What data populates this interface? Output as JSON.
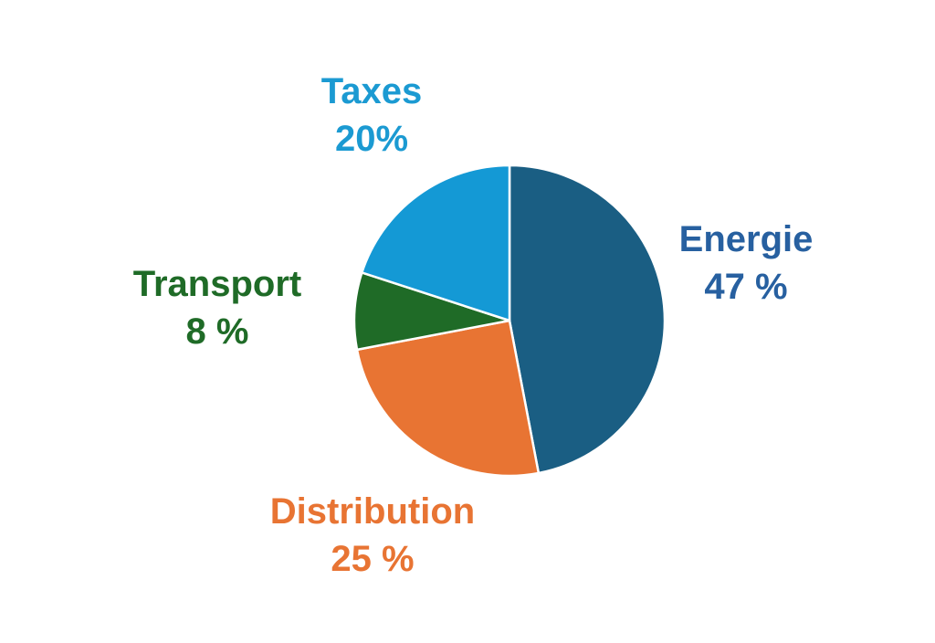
{
  "chart_data": {
    "type": "pie",
    "title": "",
    "start_angle_deg": 0,
    "direction": "clockwise",
    "slices": [
      {
        "label": "Energie",
        "value": 47,
        "display": "47 %",
        "color": "#1a5e83"
      },
      {
        "label": "Distribution",
        "value": 25,
        "display": "25 %",
        "color": "#e87433"
      },
      {
        "label": "Transport",
        "value": 8,
        "display": "8 %",
        "color": "#1f6b27"
      },
      {
        "label": "Taxes",
        "value": 20,
        "display": "20%",
        "color": "#1499d5"
      }
    ],
    "label_colors": {
      "Energie": "#2760a0",
      "Distribution": "#e87433",
      "Transport": "#1f6b27",
      "Taxes": "#1b9ad2"
    },
    "legend": "none",
    "grid": false
  }
}
